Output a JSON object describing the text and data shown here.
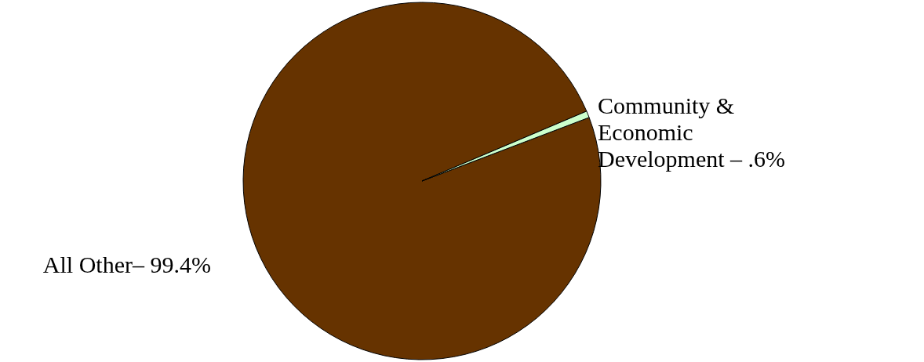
{
  "chart_data": {
    "type": "pie",
    "categories": [
      "All Other– 99.4%",
      "Community & Economic Development – .6%"
    ],
    "values": [
      99.4,
      0.6
    ],
    "colors": [
      "#663300",
      "#ccffcc"
    ]
  }
}
